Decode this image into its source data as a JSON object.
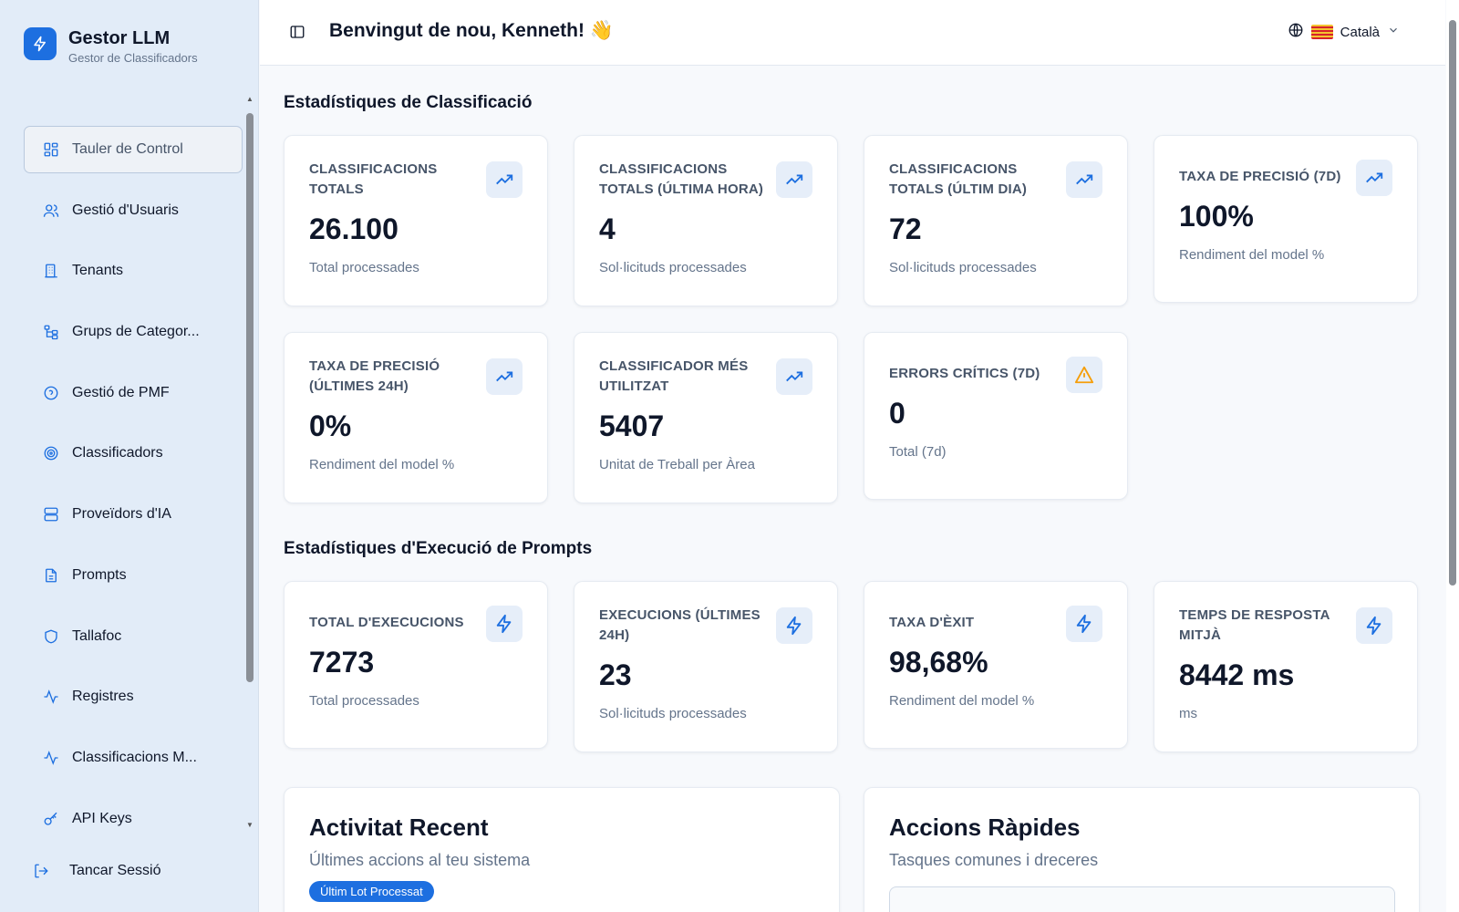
{
  "brand": {
    "title": "Gestor LLM",
    "subtitle": "Gestor de Classificadors"
  },
  "sidebar": {
    "items": [
      {
        "label": "Tauler de Control",
        "icon": "dashboard-icon",
        "active": true
      },
      {
        "label": "Gestió d'Usuaris",
        "icon": "users-icon"
      },
      {
        "label": "Tenants",
        "icon": "building-icon"
      },
      {
        "label": "Grups de Categor...",
        "icon": "hierarchy-icon"
      },
      {
        "label": "Gestió de PMF",
        "icon": "help-circle-icon"
      },
      {
        "label": "Classificadors",
        "icon": "target-icon"
      },
      {
        "label": "Proveïdors d'IA",
        "icon": "server-icon"
      },
      {
        "label": "Prompts",
        "icon": "file-text-icon"
      },
      {
        "label": "Tallafoc",
        "icon": "shield-icon"
      },
      {
        "label": "Registres",
        "icon": "activity-icon"
      },
      {
        "label": "Classificacions M...",
        "icon": "activity-icon"
      },
      {
        "label": "API Keys",
        "icon": "key-icon"
      }
    ],
    "logout_label": "Tancar Sessió"
  },
  "header": {
    "welcome": "Benvingut de nou, Kenneth! 👋",
    "language": "Català"
  },
  "classification": {
    "title": "Estadístiques de Classificació",
    "cards": [
      {
        "label": "Classificacions totals",
        "value": "26.100",
        "sub": "Total processades",
        "icon": "trending-up-icon"
      },
      {
        "label": "Classificacions totals (última hora)",
        "value": "4",
        "sub": "Sol·licituds processades",
        "icon": "trending-up-icon"
      },
      {
        "label": "Classificacions totals (últim dia)",
        "value": "72",
        "sub": "Sol·licituds processades",
        "icon": "trending-up-icon"
      },
      {
        "label": "Taxa de precisió (7d)",
        "value": "100%",
        "sub": "Rendiment del model %",
        "icon": "trending-up-icon"
      },
      {
        "label": "Taxa de precisió (últimes 24h)",
        "value": "0%",
        "sub": "Rendiment del model %",
        "icon": "trending-up-icon"
      },
      {
        "label": "Classificador més utilitzat",
        "value": "5407",
        "sub": "Unitat de Treball per Àrea",
        "icon": "trending-up-icon"
      },
      {
        "label": "Errors crítics (7d)",
        "value": "0",
        "sub": "Total (7d)",
        "icon": "warning-icon"
      }
    ]
  },
  "prompts": {
    "title": "Estadístiques d'Execució de Prompts",
    "cards": [
      {
        "label": "Total d'execucions",
        "value": "7273",
        "sub": "Total processades",
        "icon": "zap-icon"
      },
      {
        "label": "Execucions (últimes 24h)",
        "value": "23",
        "sub": "Sol·licituds processades",
        "icon": "zap-icon"
      },
      {
        "label": "Taxa d'èxit",
        "value": "98,68%",
        "sub": "Rendiment del model %",
        "icon": "zap-icon"
      },
      {
        "label": "Temps de resposta mitjà",
        "value": "8442 ms",
        "sub": "ms",
        "icon": "zap-icon"
      }
    ]
  },
  "recent": {
    "title": "Activitat Recent",
    "subtitle": "Últimes accions al teu sistema",
    "badge": "Últim Lot Processat"
  },
  "quick": {
    "title": "Accions Ràpides",
    "subtitle": "Tasques comunes i dreceres"
  },
  "colors": {
    "accent": "#1d6fe0",
    "sidebar_bg": "#e2ecf8",
    "warning": "#f59e0b"
  }
}
